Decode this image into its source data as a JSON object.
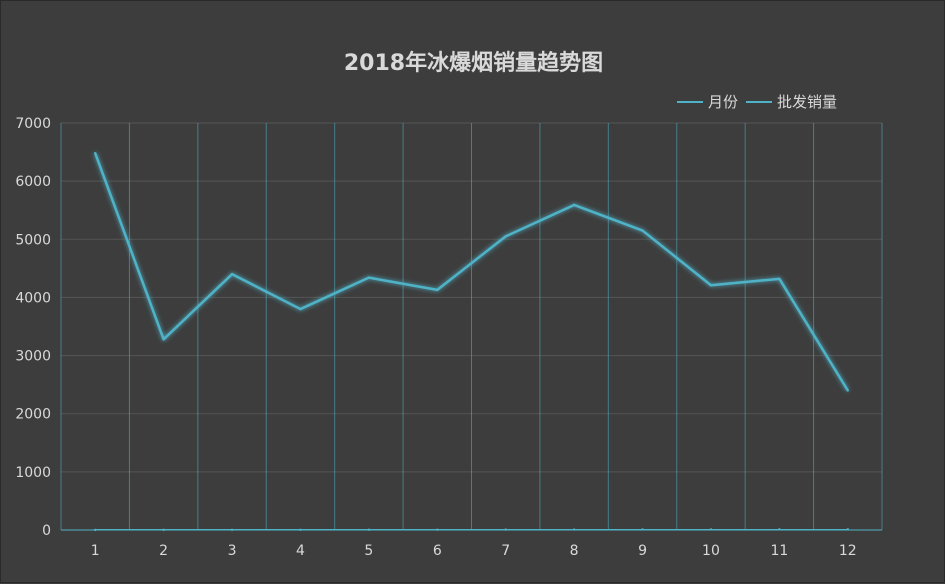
{
  "chart_data": {
    "type": "line",
    "title": "2018年冰爆烟销量趋势图",
    "x": [
      "1",
      "2",
      "3",
      "4",
      "5",
      "6",
      "7",
      "8",
      "9",
      "10",
      "11",
      "12"
    ],
    "series": [
      {
        "name": "月份",
        "values": [
          1,
          2,
          3,
          4,
          5,
          6,
          7,
          8,
          9,
          10,
          11,
          12
        ]
      },
      {
        "name": "批发销量",
        "values": [
          6480,
          3280,
          4400,
          3800,
          4340,
          4130,
          5050,
          5590,
          5150,
          4210,
          4320,
          2400
        ]
      }
    ],
    "ylim": [
      0,
      7000
    ],
    "yticks": [
      "0",
      "1000",
      "2000",
      "3000",
      "4000",
      "5000",
      "6000",
      "7000"
    ],
    "grid": true,
    "legend": "top-right",
    "colors": {
      "background": "#3d3d3d",
      "line": "#4fb3c8",
      "grid": "#555555",
      "text": "#d9d9d9"
    }
  }
}
